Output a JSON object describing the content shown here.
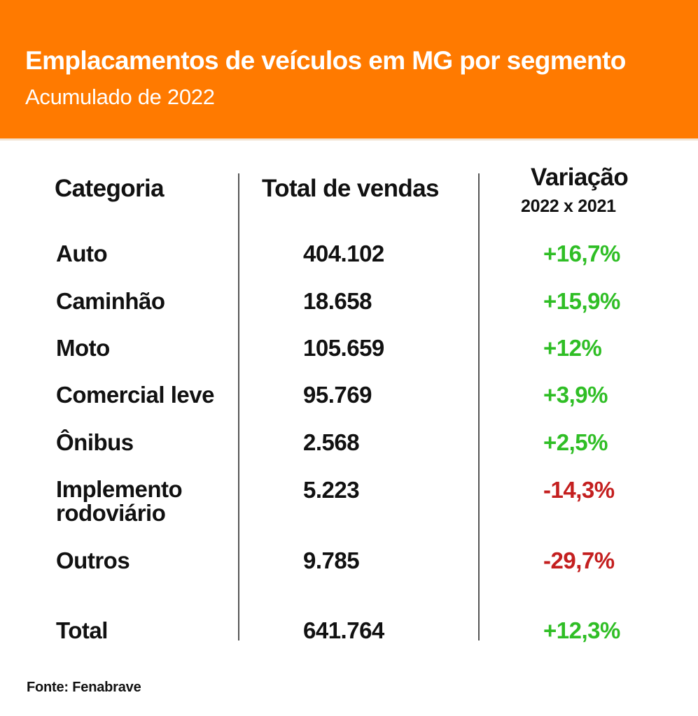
{
  "header": {
    "title": "Emplacamentos de veículos em MG por segmento",
    "subtitle": "Acumulado de 2022"
  },
  "columns": {
    "category": "Categoria",
    "total": "Total de vendas",
    "variation": "Variação",
    "variation_sub": "2022 x 2021"
  },
  "source": "Fonte: Fenabrave",
  "colors": {
    "header_bg": "#ff7a00",
    "positive": "#2fbe25",
    "negative": "#c41f1f"
  },
  "chart_data": {
    "type": "table",
    "title": "Emplacamentos de veículos em MG por segmento",
    "subtitle": "Acumulado de 2022",
    "columns": [
      "Categoria",
      "Total de vendas",
      "Variação 2022 x 2021"
    ],
    "rows": [
      {
        "category": "Auto",
        "total": "404.102",
        "variation": "+16,7%"
      },
      {
        "category": "Caminhão",
        "total": "18.658",
        "variation": "+15,9%"
      },
      {
        "category": "Moto",
        "total": "105.659",
        "variation": "+12%"
      },
      {
        "category": "Comercial leve",
        "total": "95.769",
        "variation": "+3,9%"
      },
      {
        "category": "Ônibus",
        "total": "2.568",
        "variation": "+2,5%"
      },
      {
        "category": "Implemento rodoviário",
        "total": "5.223",
        "variation": "-14,3%"
      },
      {
        "category": "Outros",
        "total": "9.785",
        "variation": "-29,7%"
      },
      {
        "category": "Total",
        "total": "641.764",
        "variation": "+12,3%"
      }
    ]
  }
}
